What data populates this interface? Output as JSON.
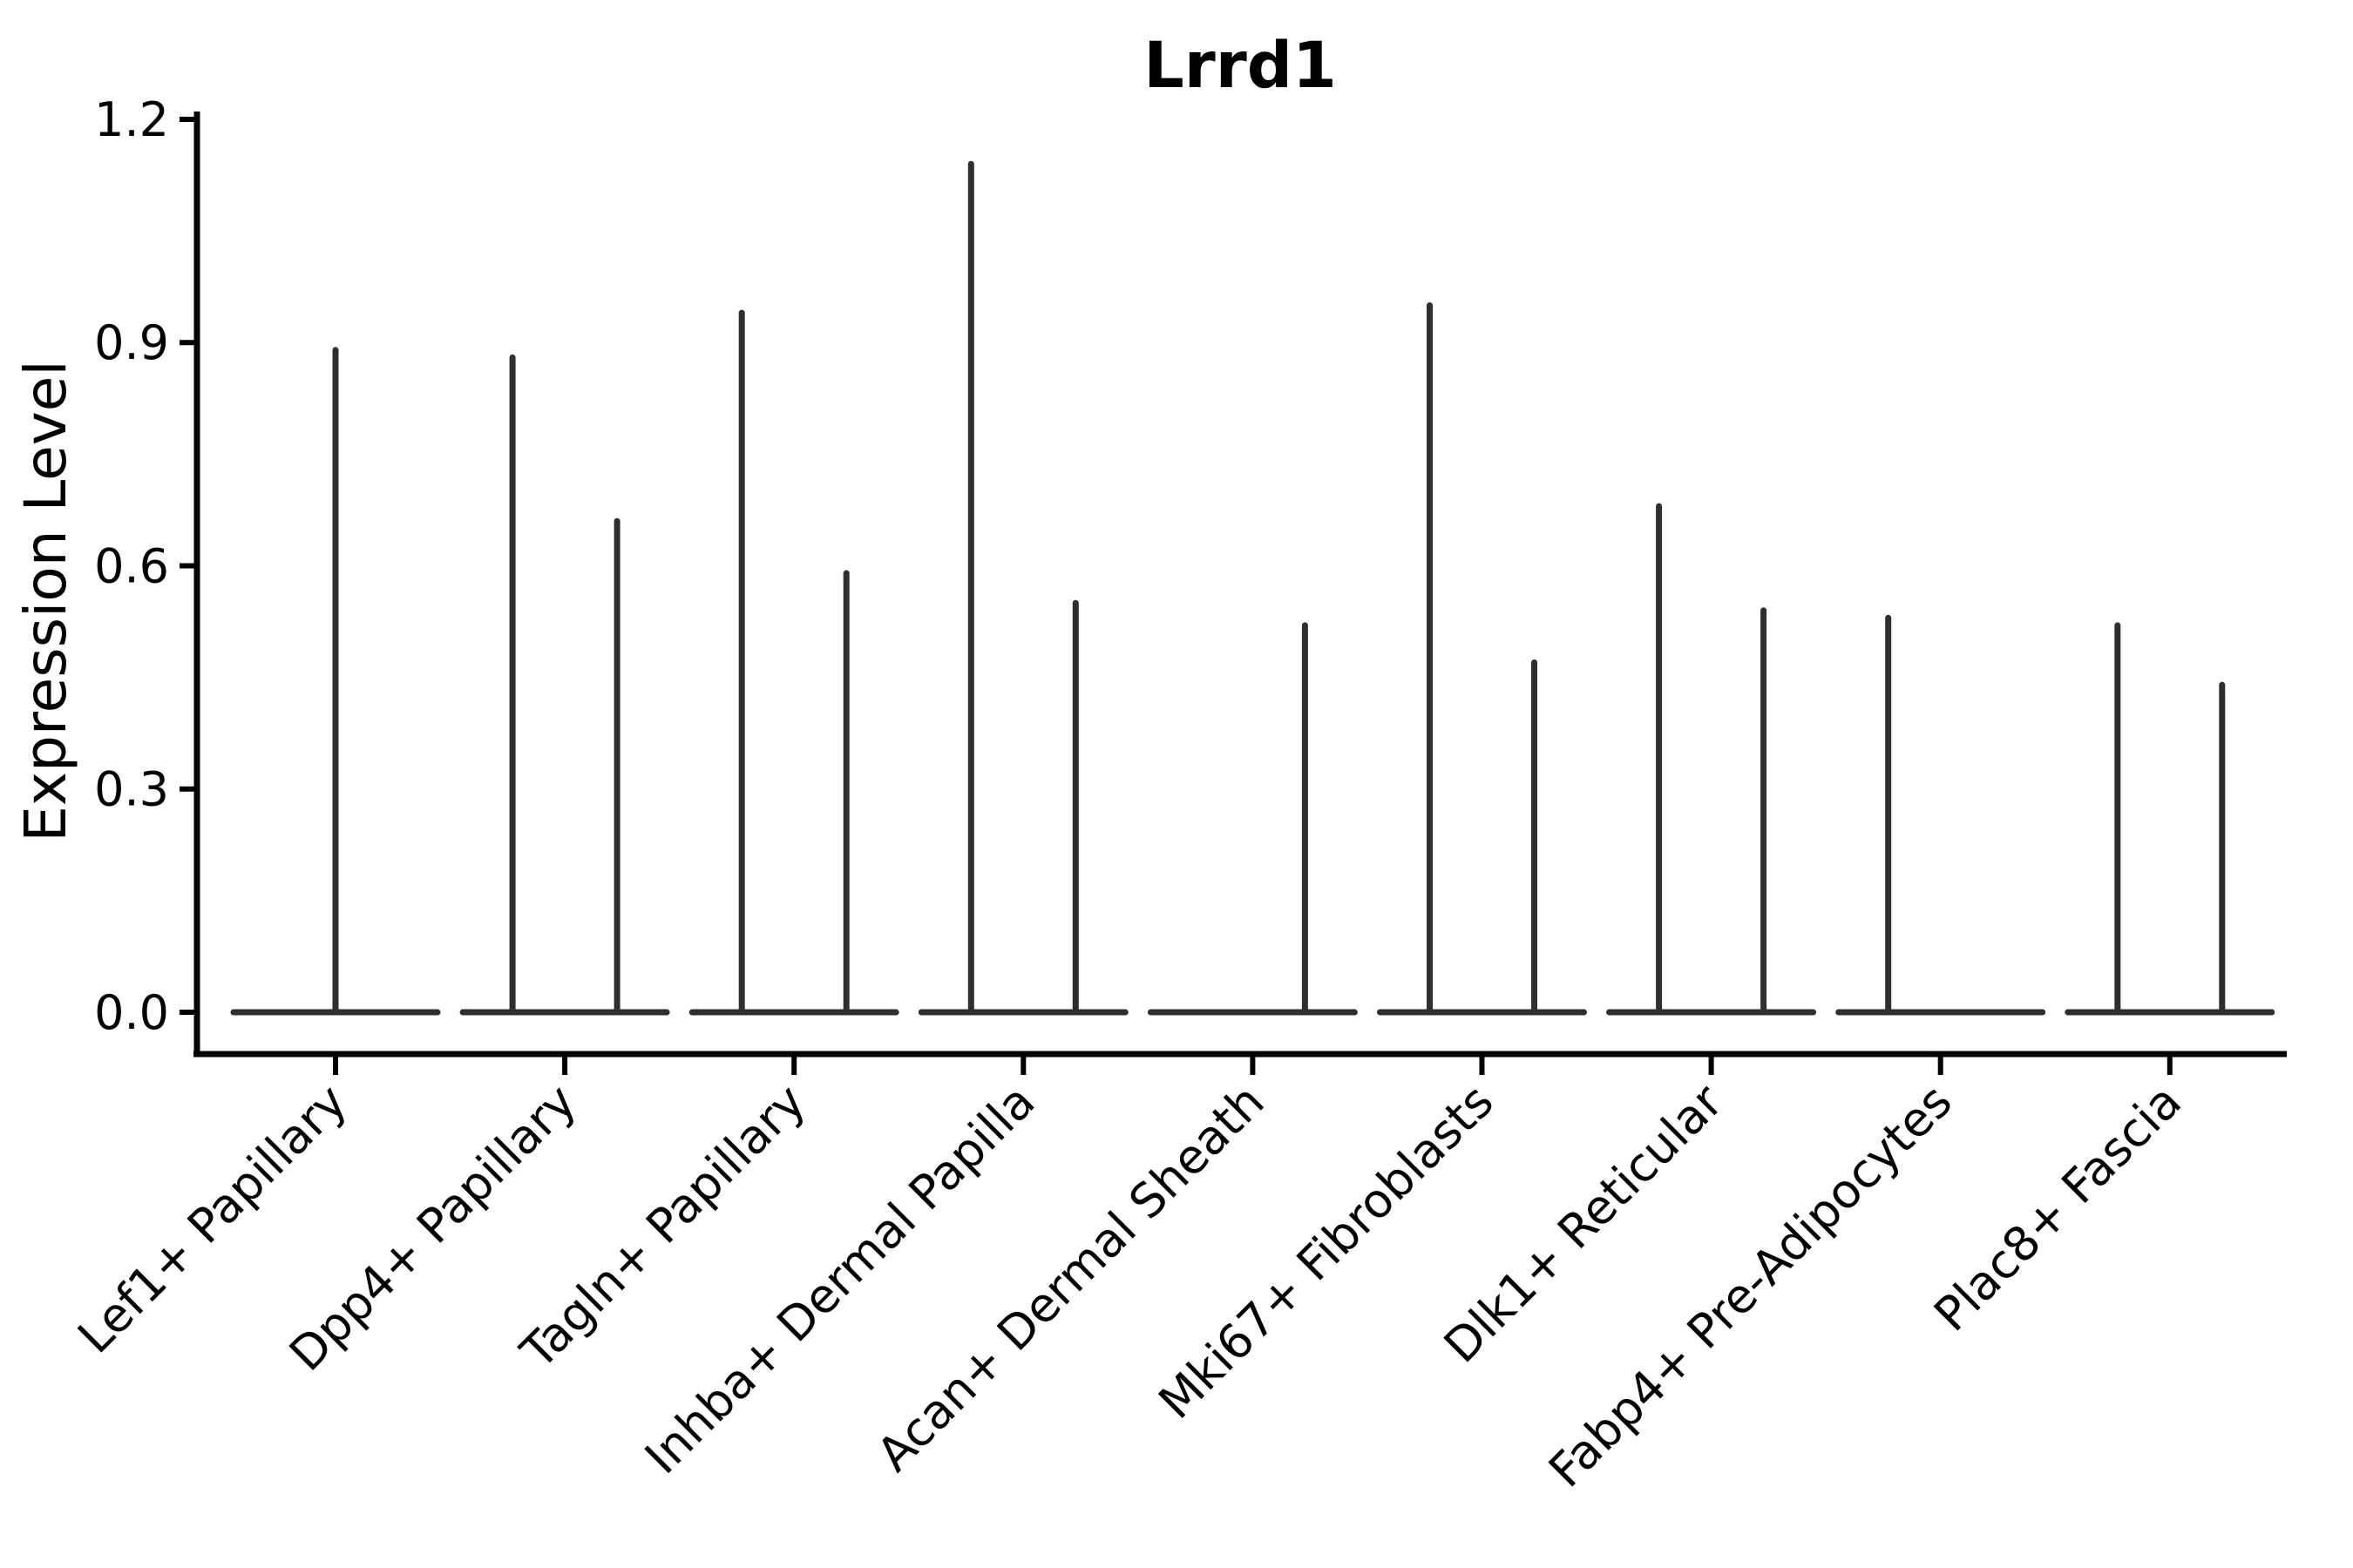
{
  "figure": {
    "background": "#ffffff"
  },
  "chart_data": {
    "type": "violin",
    "title": "Lrrd1",
    "ylabel": "Expression Level",
    "xlabel": "",
    "ylim": [
      0,
      1.2
    ],
    "yticks": [
      0.0,
      0.3,
      0.6,
      0.9,
      1.2
    ],
    "ytick_labels": [
      "0.0",
      "0.3",
      "0.6",
      "0.9",
      "1.2"
    ],
    "grid": false,
    "legend": "none",
    "colors": {
      "violin_outline": "#2f2f2f",
      "axis": "#000000",
      "text": "#000000"
    },
    "categories": [
      "Lef1+ Papillary",
      "Dpp4+ Papillary",
      "Tagln+ Papillary",
      "Inhba+ Dermal Papilla",
      "Acan+ Dermal Sheath",
      "Mki67+ Fibroblasts",
      "Dlk1+ Reticular",
      "Fabp4+ Pre-Adipocytes",
      "Plac8+ Fascia"
    ],
    "series": [
      {
        "category": "Lef1+ Papillary",
        "spikes": [
          {
            "position": "center",
            "peak": 0.89
          }
        ]
      },
      {
        "category": "Dpp4+ Papillary",
        "spikes": [
          {
            "position": "left",
            "peak": 0.88
          },
          {
            "position": "right",
            "peak": 0.66
          }
        ]
      },
      {
        "category": "Tagln+ Papillary",
        "spikes": [
          {
            "position": "left",
            "peak": 0.94
          },
          {
            "position": "right",
            "peak": 0.59
          }
        ]
      },
      {
        "category": "Inhba+ Dermal Papilla",
        "spikes": [
          {
            "position": "left",
            "peak": 1.14
          },
          {
            "position": "right",
            "peak": 0.55
          }
        ]
      },
      {
        "category": "Acan+ Dermal Sheath",
        "spikes": [
          {
            "position": "right",
            "peak": 0.52
          }
        ]
      },
      {
        "category": "Mki67+ Fibroblasts",
        "spikes": [
          {
            "position": "left",
            "peak": 0.95
          },
          {
            "position": "right",
            "peak": 0.47
          }
        ]
      },
      {
        "category": "Dlk1+ Reticular",
        "spikes": [
          {
            "position": "left",
            "peak": 0.68
          },
          {
            "position": "right",
            "peak": 0.54
          }
        ]
      },
      {
        "category": "Fabp4+ Pre-Adipocytes",
        "spikes": [
          {
            "position": "left",
            "peak": 0.53
          }
        ]
      },
      {
        "category": "Plac8+ Fascia",
        "spikes": [
          {
            "position": "left",
            "peak": 0.52
          },
          {
            "position": "right",
            "peak": 0.44
          }
        ]
      }
    ]
  }
}
